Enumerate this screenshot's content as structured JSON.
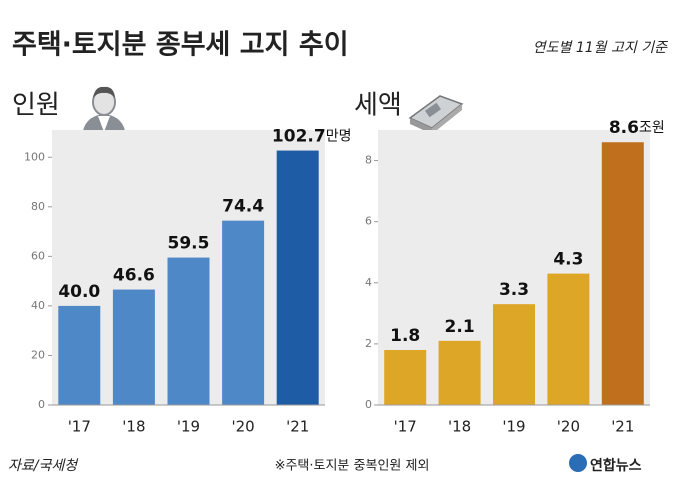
{
  "title": "주택·토지분 종부세 고지 추이",
  "subtitle": "연도별 11월 고지 기준",
  "source": "자료/국세청",
  "note": "※주택·토지분 중복인원 제외",
  "logo": "연합뉴스",
  "chart_data": [
    {
      "type": "bar",
      "title": "인원",
      "categories": [
        "'17",
        "'18",
        "'19",
        "'20",
        "'21"
      ],
      "values": [
        40.0,
        46.6,
        59.5,
        74.4,
        102.7
      ],
      "value_labels": [
        "40.0",
        "46.6",
        "59.5",
        "74.4",
        "102.7"
      ],
      "value_unit": "만명",
      "colors": [
        "#4f88c6",
        "#4f88c6",
        "#4f88c6",
        "#4f88c6",
        "#1e5ca6"
      ],
      "ylim": [
        0,
        111
      ],
      "yticks": [
        0,
        20,
        40,
        60,
        80,
        100
      ]
    },
    {
      "type": "bar",
      "title": "세액",
      "categories": [
        "'17",
        "'18",
        "'19",
        "'20",
        "'21"
      ],
      "values": [
        1.8,
        2.1,
        3.3,
        4.3,
        8.6
      ],
      "value_unit": "조원",
      "colors": [
        "#dea627",
        "#dea627",
        "#dea627",
        "#dea627",
        "#c06f1c"
      ],
      "ylim": [
        0,
        9
      ],
      "yticks": [
        0,
        2,
        4,
        6,
        8
      ]
    }
  ]
}
